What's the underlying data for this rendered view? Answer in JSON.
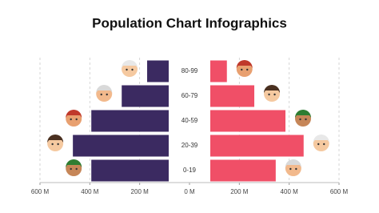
{
  "chart_data": {
    "type": "pyramid",
    "title": "Population Chart Infographics",
    "categories": [
      "80-99",
      "60-79",
      "40-59",
      "20-39",
      "0-19"
    ],
    "series": [
      {
        "color": "#3b2a61",
        "values": [
          170,
          272,
          394,
          468,
          394
        ]
      },
      {
        "color": "#f04f67",
        "values": [
          150,
          260,
          385,
          458,
          346
        ]
      }
    ],
    "xlim": [
      -600,
      600
    ],
    "xticks": [
      {
        "value": -600,
        "label": "600 M"
      },
      {
        "value": -400,
        "label": "400 M"
      },
      {
        "value": -200,
        "label": "200 M"
      },
      {
        "value": 0,
        "label": "0 M"
      },
      {
        "value": 200,
        "label": "200 M"
      },
      {
        "value": 400,
        "label": "400 M"
      },
      {
        "value": 600,
        "label": "600 M"
      }
    ],
    "grid": true
  }
}
